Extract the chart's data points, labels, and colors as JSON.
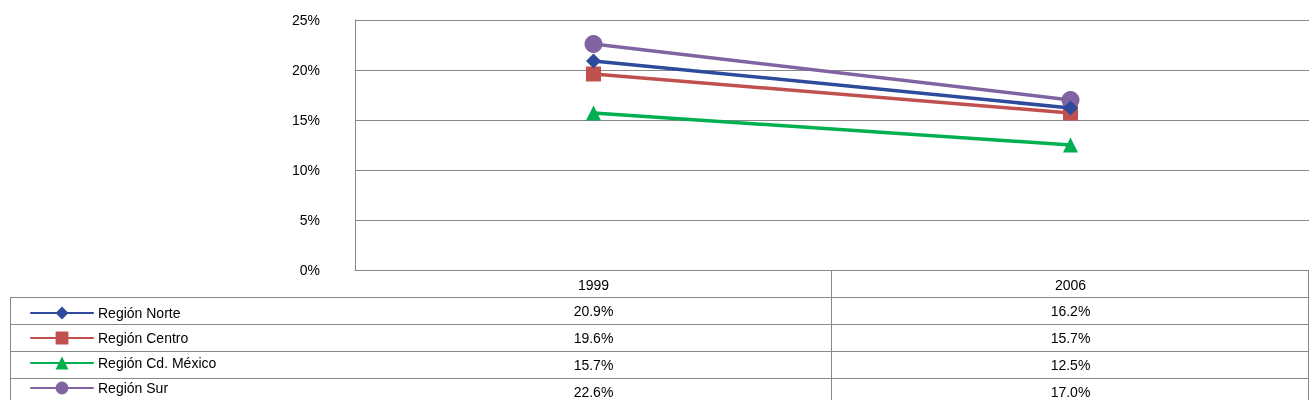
{
  "chart_data": {
    "type": "line",
    "categories": [
      "1999",
      "2006"
    ],
    "series": [
      {
        "name": "Región Norte",
        "color": "#2e4b9b",
        "marker": "diamond",
        "values": [
          20.9,
          16.2
        ],
        "value_labels": [
          "20.9%",
          "16.2%"
        ]
      },
      {
        "name": "Región Centro",
        "color": "#c0504d",
        "marker": "square",
        "values": [
          19.6,
          15.7
        ],
        "value_labels": [
          "19.6%",
          "15.7%"
        ]
      },
      {
        "name": "Región Cd. México",
        "color": "#00b050",
        "marker": "triangle",
        "values": [
          15.7,
          12.5
        ],
        "value_labels": [
          "15.7%",
          "12.5%"
        ]
      },
      {
        "name": "Región Sur",
        "color": "#8064a2",
        "marker": "circle",
        "values": [
          22.6,
          17.0
        ],
        "value_labels": [
          "22.6%",
          "17.0%"
        ]
      }
    ],
    "ylim": [
      0,
      25
    ],
    "yticks": [
      {
        "value": 0,
        "label": "0%"
      },
      {
        "value": 5,
        "label": "5%"
      },
      {
        "value": 10,
        "label": "10%"
      },
      {
        "value": 15,
        "label": "15%"
      },
      {
        "value": 20,
        "label": "20%"
      },
      {
        "value": 25,
        "label": "25%"
      }
    ],
    "grid": "y",
    "legend": "bottom left",
    "line_style": "solid"
  }
}
